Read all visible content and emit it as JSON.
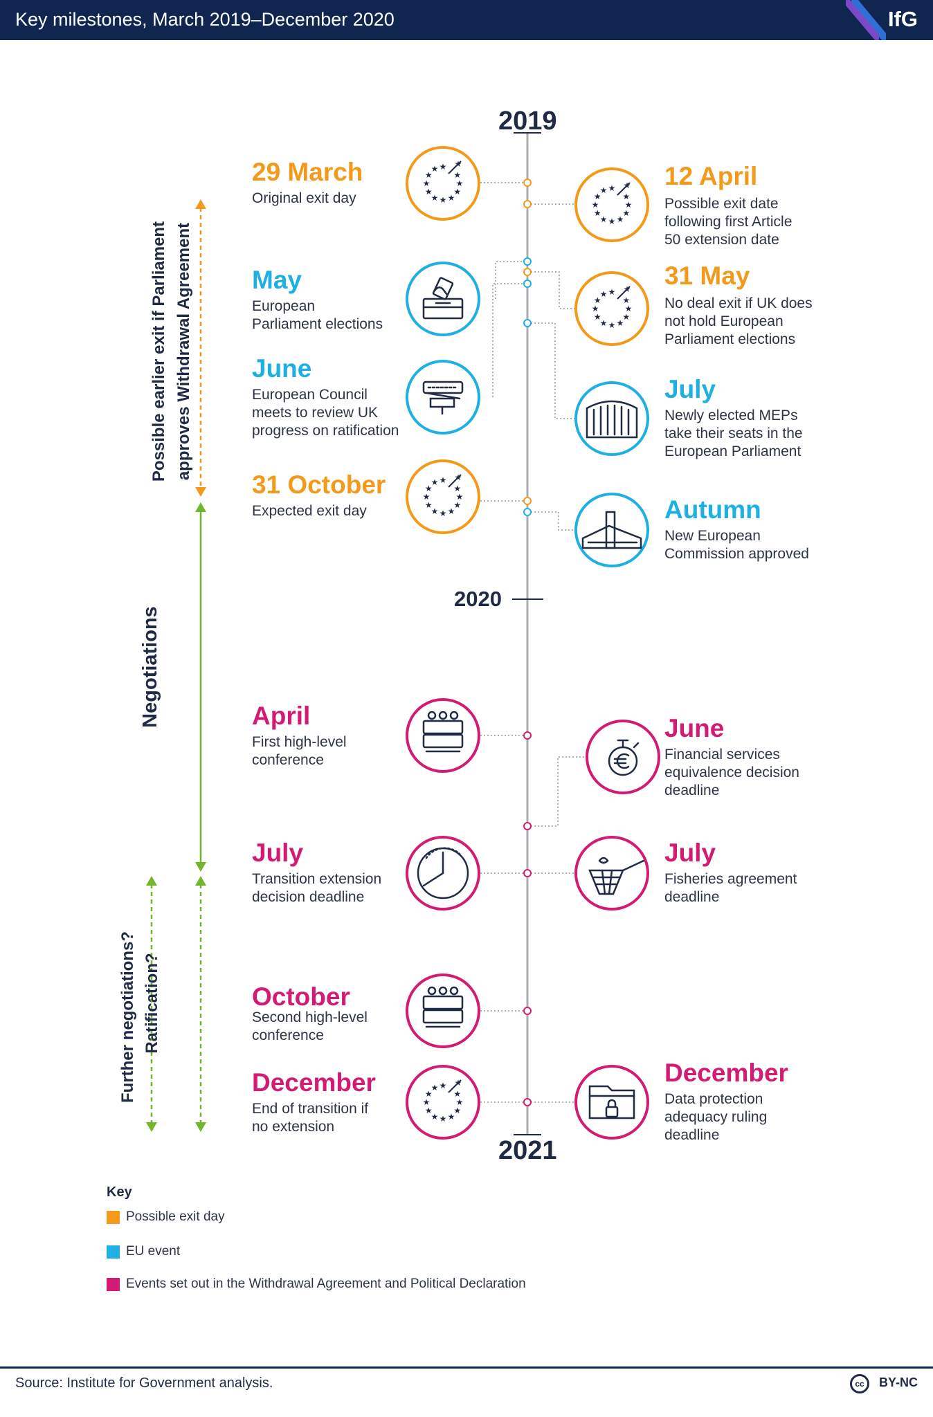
{
  "header": {
    "title": "Key milestones, March 2019–December 2020",
    "logo": "IfG"
  },
  "years": [
    "2019",
    "2020",
    "2021"
  ],
  "side_labels": {
    "possible_exit": "Possible earlier exit if Parliament\napproves Withdrawal Agreement",
    "negotiations": "Negotiations",
    "further_negotiations": "Further negotiations?",
    "ratification": "Ratification?"
  },
  "events": [
    {
      "id": "mar29",
      "title": "29 March",
      "description": "Original exit day",
      "category": "exit",
      "icon": "eu-stars-icon"
    },
    {
      "id": "apr12",
      "title": "12 April",
      "description": "Possible exit date\nfollowing first Article\n50 extension date",
      "category": "exit",
      "icon": "eu-stars-icon"
    },
    {
      "id": "may",
      "title": "May",
      "description": "European\nParliament elections",
      "category": "eu",
      "icon": "ballot-box-icon"
    },
    {
      "id": "may31",
      "title": "31 May",
      "description": "No deal exit if UK does\nnot hold European\nParliament elections",
      "category": "exit",
      "icon": "eu-stars-icon"
    },
    {
      "id": "june2019",
      "title": "June",
      "description": "European Council\nmeets to review UK\nprogress on ratification",
      "category": "eu",
      "icon": "council-crowd-icon"
    },
    {
      "id": "july2019",
      "title": "July",
      "description": "Newly elected MEPs\ntake their seats in the\nEuropean Parliament",
      "category": "eu",
      "icon": "parliament-building-icon"
    },
    {
      "id": "oct31",
      "title": "31 October",
      "description": "Expected exit day",
      "category": "exit",
      "icon": "eu-stars-icon"
    },
    {
      "id": "autumn",
      "title": "Autumn",
      "description": "New European\nCommission approved",
      "category": "eu",
      "icon": "commission-building-icon"
    },
    {
      "id": "apr2020",
      "title": "April",
      "description": "First high-level\nconference",
      "category": "wa",
      "icon": "conference-seats-icon"
    },
    {
      "id": "jun2020",
      "title": "June",
      "description": "Financial services\nequivalence decision\ndeadline",
      "category": "wa",
      "icon": "euro-stopwatch-icon"
    },
    {
      "id": "jul2020a",
      "title": "July",
      "description": "Transition extension\ndecision deadline",
      "category": "wa",
      "icon": "clock-gauge-icon"
    },
    {
      "id": "jul2020b",
      "title": "July",
      "description": "Fisheries agreement\ndeadline",
      "category": "wa",
      "icon": "fishing-net-icon"
    },
    {
      "id": "oct2020",
      "title": "October",
      "description": "Second high-level\nconference",
      "category": "wa",
      "icon": "conference-seats-icon"
    },
    {
      "id": "dec2020a",
      "title": "December",
      "description": "End of transition if\nno extension",
      "category": "wa",
      "icon": "eu-stars-icon"
    },
    {
      "id": "dec2020b",
      "title": "December",
      "description": "Data protection\nadequacy ruling\ndeadline",
      "category": "wa",
      "icon": "data-folder-lock-icon"
    }
  ],
  "key": {
    "heading": "Key",
    "items": [
      {
        "label": "Possible exit day",
        "color": "#f39a1b"
      },
      {
        "label": "EU event",
        "color": "#1eb0e3"
      },
      {
        "label": "Events set out in the Withdrawal Agreement and Political Declaration",
        "color": "#d31b74"
      }
    ]
  },
  "colors": {
    "exit": "#f39a1b",
    "eu": "#1eb0e3",
    "wa": "#d31b74",
    "navy": "#112551",
    "green": "#72b62e",
    "axis": "#a9adb6"
  },
  "source": "Source: Institute for Government analysis.",
  "license": "BY-NC"
}
